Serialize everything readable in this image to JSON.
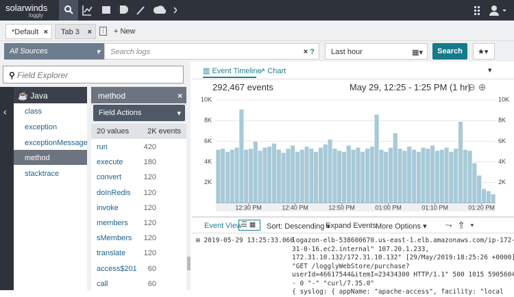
{
  "nav": {
    "logo": "solarwinds",
    "sublogo": "loggly"
  },
  "tabs": [
    "*Default",
    "Tab 3"
  ],
  "new_tab": "+ New",
  "search": {
    "source": "All Sources",
    "placeholder": "Search logs",
    "time": "Last hour",
    "button": "Search"
  },
  "field_explorer": {
    "placeholder": "Field Explorer",
    "group": "Java",
    "fields": [
      "class",
      "exception",
      "exceptionMessage",
      "method",
      "stacktrace"
    ],
    "selected": 3
  },
  "field_panel": {
    "title": "method",
    "actions": "Field Actions",
    "value_count": "20 values",
    "event_count": "2K events",
    "values": [
      {
        "name": "run",
        "count": 420
      },
      {
        "name": "execute",
        "count": 180
      },
      {
        "name": "convert",
        "count": 120
      },
      {
        "name": "doInRedis",
        "count": 120
      },
      {
        "name": "invoke",
        "count": 120
      },
      {
        "name": "members",
        "count": 120
      },
      {
        "name": "sMembers",
        "count": 120
      },
      {
        "name": "translate",
        "count": 120
      },
      {
        "name": "access$201",
        "count": 60
      },
      {
        "name": "call",
        "count": 60
      }
    ]
  },
  "timeline": {
    "tabs": [
      "Event Timeline",
      "Chart"
    ],
    "events": "292,467 events",
    "range": "May 29, 12:25 - 1:25 PM (1 hr)"
  },
  "chart_data": {
    "type": "histogram",
    "color": "#a8cad8",
    "bins": [
      0,
      1,
      2,
      3,
      4,
      5,
      6,
      7,
      8,
      9,
      10,
      11,
      12,
      13,
      14,
      15,
      16,
      17,
      18,
      19,
      20,
      21,
      22,
      23,
      24,
      25,
      26,
      27,
      28,
      29,
      30,
      31,
      32,
      33,
      34,
      35,
      36,
      37,
      38,
      39,
      40,
      41,
      42,
      43,
      44,
      45,
      46,
      47,
      48,
      49,
      50,
      51,
      52,
      53,
      54,
      55,
      56,
      57,
      58,
      59,
      60
    ],
    "values": [
      5200,
      5300,
      5000,
      5200,
      5400,
      9100,
      5200,
      5300,
      6000,
      5100,
      5400,
      5500,
      5800,
      5200,
      4900,
      5300,
      5600,
      5000,
      5200,
      5500,
      5300,
      5000,
      5400,
      5700,
      6200,
      5300,
      5100,
      5000,
      5600,
      5200,
      5400,
      5000,
      5300,
      5500,
      8600,
      5200,
      5000,
      5400,
      6800,
      5300,
      5100,
      5500,
      5200,
      5000,
      5400,
      5300,
      5600,
      5100,
      5200,
      5400,
      5000,
      5300,
      7900,
      5200,
      5100,
      3900,
      2700,
      1400,
      1200,
      900
    ],
    "xlim": [
      0,
      60
    ],
    "xticks": [
      {
        "value": 7,
        "label": "12:30 PM"
      },
      {
        "value": 17,
        "label": "12:40 PM"
      },
      {
        "value": 27,
        "label": "12:50 PM"
      },
      {
        "value": 37,
        "label": "01:00 PM"
      },
      {
        "value": 47,
        "label": "01:10 PM"
      },
      {
        "value": 57,
        "label": "01:20 PM"
      }
    ],
    "ylim": [
      0,
      10000
    ],
    "yticks": [
      {
        "value": 2000,
        "label": "2K"
      },
      {
        "value": 4000,
        "label": "4K"
      },
      {
        "value": 6000,
        "label": "6K"
      },
      {
        "value": 8000,
        "label": "8K"
      },
      {
        "value": 10000,
        "label": "10K"
      }
    ],
    "grid": true
  },
  "events_toolbar": {
    "view": "Event View",
    "sort": "Sort: Descending",
    "expand": "Expand Events",
    "more": "More Options"
  },
  "event": {
    "timestamp": "2019-05-29 13:25:33.066",
    "lines": [
      "logazon-elb-538600670.us-east-1.elb.amazonaws.com/ip-172-",
      "31-0-16.ec2.internal\" 107.20.1.233,",
      "172.31.10.132/172.31.10.132\" [29/May/2019:18:25:26 +0000]",
      "\"GET /logglyWebStore/purchase?",
      "userId=46617544&itemI=23434300 HTTP/1.1\" 500 1015 5905604",
      "- 0 \"-\" \"curl/7.35.0\"",
      "{ syslog: { appName: \"apache-access\", facility: \"local"
    ]
  }
}
